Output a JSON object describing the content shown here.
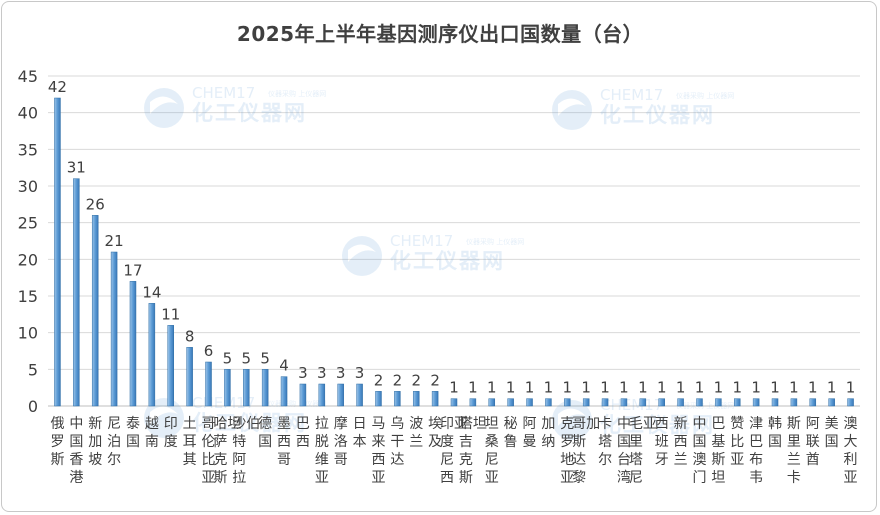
{
  "chart_data": {
    "type": "bar",
    "title": "2025年上半年基因测序仪出口国数量（台）",
    "xlabel": "",
    "ylabel": "",
    "ylim": [
      0,
      45
    ],
    "yticks": [
      0,
      5,
      10,
      15,
      20,
      25,
      30,
      35,
      40,
      45
    ],
    "grid": true,
    "legend": "none",
    "bar_color": "#5b9bd5",
    "categories": [
      "俄罗斯",
      "中国香港",
      "新加坡",
      "尼泊尔",
      "泰国",
      "越南",
      "印度",
      "土耳其",
      "哥伦比亚",
      "哈萨克斯坦",
      "沙特阿拉伯",
      "德国",
      "墨西哥",
      "巴西",
      "拉脱维亚",
      "摩洛哥",
      "日本",
      "马来西亚",
      "乌干达",
      "波兰",
      "埃及",
      "印度尼西亚",
      "塔吉克斯坦",
      "坦桑尼亚",
      "秘鲁",
      "阿曼",
      "加纳",
      "克罗地亚",
      "哥斯达黎加",
      "卡塔尔",
      "中国台湾",
      "毛里塔尼亚",
      "西班牙",
      "新西兰",
      "中国澳门",
      "巴基斯坦",
      "赞比亚",
      "津巴布韦",
      "韩国",
      "斯里兰卡",
      "阿联酋",
      "美国",
      "澳大利亚"
    ],
    "values": [
      42,
      31,
      26,
      21,
      17,
      14,
      11,
      8,
      6,
      5,
      5,
      5,
      4,
      3,
      3,
      3,
      3,
      2,
      2,
      2,
      2,
      1,
      1,
      1,
      1,
      1,
      1,
      1,
      1,
      1,
      1,
      1,
      1,
      1,
      1,
      1,
      1,
      1,
      1,
      1,
      1,
      1,
      1
    ]
  },
  "watermark": {
    "brand": "CHEM17",
    "tagline": "仪器采购 上仪器网",
    "name": "化工仪器网"
  }
}
